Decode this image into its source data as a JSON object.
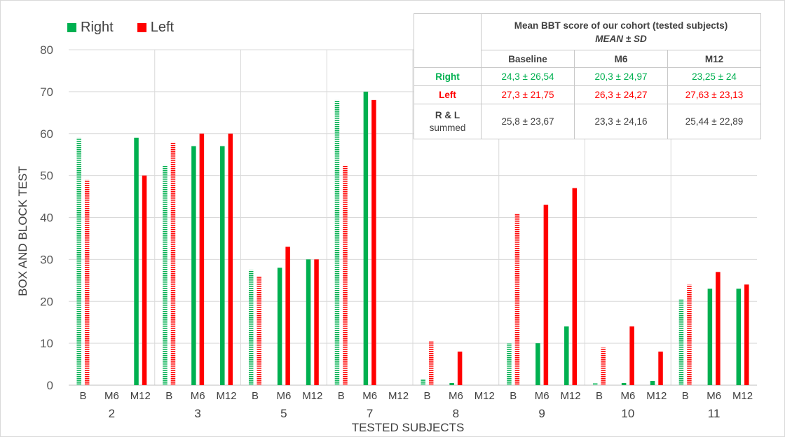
{
  "chart_data": {
    "type": "bar",
    "xlabel": "TESTED SUBJECTS",
    "ylabel": "BOX AND BLOCK TEST",
    "ylim": [
      0,
      80
    ],
    "yticks": [
      0,
      10,
      20,
      30,
      40,
      50,
      60,
      70,
      80
    ],
    "timepoints": [
      "B",
      "M6",
      "M12"
    ],
    "subjects": [
      "2",
      "3",
      "5",
      "7",
      "8",
      "9",
      "10",
      "11"
    ],
    "legend": {
      "position": "top-left",
      "right_label": "Right",
      "left_label": "Left"
    },
    "colors": {
      "right": "#00b050",
      "left": "#ff0000"
    },
    "baseline_pattern": "horizontal-stripes",
    "series": [
      {
        "name": "Right",
        "values": [
          [
            59,
            0,
            59
          ],
          [
            52.5,
            57,
            57
          ],
          [
            27.5,
            28,
            30
          ],
          [
            68,
            70,
            0
          ],
          [
            1.5,
            0.5,
            0
          ],
          [
            10,
            10,
            14
          ],
          [
            0.5,
            0.5,
            1
          ],
          [
            20.5,
            23,
            23
          ]
        ]
      },
      {
        "name": "Left",
        "values": [
          [
            49,
            0,
            50
          ],
          [
            58,
            60,
            60
          ],
          [
            26,
            33,
            30
          ],
          [
            52.5,
            68,
            0
          ],
          [
            10.5,
            8,
            0
          ],
          [
            41,
            43,
            47
          ],
          [
            9,
            14,
            8
          ],
          [
            24,
            27,
            24
          ]
        ]
      }
    ],
    "table": {
      "title": "Mean BBT score of our cohort (tested subjects)",
      "subtitle": "MEAN ± SD",
      "columns": [
        "Baseline",
        "M6",
        "M12"
      ],
      "rows": [
        {
          "label": "Right",
          "values": [
            "24,3 ± 26,54",
            "20,3 ± 24,97",
            "23,25 ± 24"
          ]
        },
        {
          "label": "Left",
          "values": [
            "27,3 ± 21,75",
            "26,3 ± 24,27",
            "27,63 ± 23,13"
          ]
        },
        {
          "label_line1": "R & L",
          "label_line2": "summed",
          "values": [
            "25,8 ± 23,67",
            "23,3 ± 24,16",
            "25,44 ± 22,89"
          ]
        }
      ]
    }
  }
}
